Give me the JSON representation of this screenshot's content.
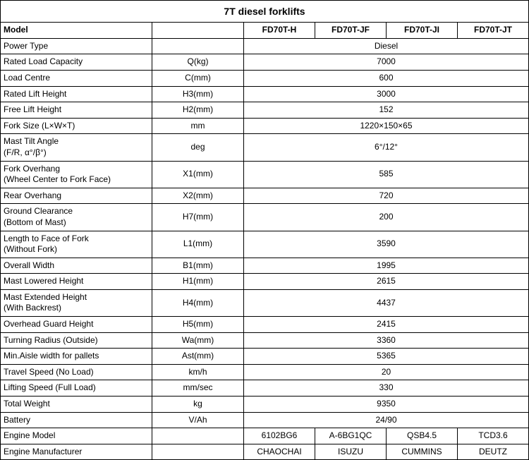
{
  "title": "7T diesel forklifts",
  "header": {
    "model_label": "Model",
    "models": [
      "FD70T-H",
      "FD70T-JF",
      "FD70T-JI",
      "FD70T-JT"
    ]
  },
  "rows_merged": [
    {
      "label": "Power Type",
      "unit": "",
      "value": "Diesel"
    },
    {
      "label": "Rated Load Capacity",
      "unit": "Q(kg)",
      "value": "7000"
    },
    {
      "label": "Load Centre",
      "unit": "C(mm)",
      "value": "600"
    },
    {
      "label": "Rated Lift Height",
      "unit": "H3(mm)",
      "value": "3000"
    },
    {
      "label": "Free Lift Height",
      "unit": "H2(mm)",
      "value": "152"
    },
    {
      "label": "Fork Size (L×W×T)",
      "unit": "mm",
      "value": "1220×150×65"
    },
    {
      "label": "Mast Tilt Angle\n (F/R, α°/β°)",
      "unit": "deg",
      "value": "6°/12°"
    },
    {
      "label": "Fork Overhang\n(Wheel Center to Fork Face)",
      "unit": "X1(mm)",
      "value": "585"
    },
    {
      "label": "Rear Overhang",
      "unit": "X2(mm)",
      "value": "720"
    },
    {
      "label": "Ground Clearance\n(Bottom of Mast)",
      "unit": "H7(mm)",
      "value": "200"
    },
    {
      "label": "Length to Face of Fork\n (Without Fork)",
      "unit": "L1(mm)",
      "value": "3590"
    },
    {
      "label": "Overall Width",
      "unit": "B1(mm)",
      "value": "1995"
    },
    {
      "label": "Mast Lowered Height",
      "unit": "H1(mm)",
      "value": "2615"
    },
    {
      "label": "Mast Extended Height\n(With Backrest)",
      "unit": "H4(mm)",
      "value": "4437"
    },
    {
      "label": "Overhead Guard Height",
      "unit": "H5(mm)",
      "value": "2415"
    },
    {
      "label": "Turning Radius (Outside)",
      "unit": "Wa(mm)",
      "value": "3360"
    },
    {
      "label": "Min.Aisle width for pallets",
      "unit": "Ast(mm)",
      "value": "5365"
    },
    {
      "label": "Travel Speed (No Load)",
      "unit": "km/h",
      "value": "20"
    },
    {
      "label": "Lifting Speed (Full Load)",
      "unit": "mm/sec",
      "value": "330"
    },
    {
      "label": "Total Weight",
      "unit": "kg",
      "value": "9350"
    },
    {
      "label": "Battery",
      "unit": "V/Ah",
      "value": "24/90"
    }
  ],
  "engine_model": {
    "label": "Engine Model",
    "unit": "",
    "values": [
      "6102BG6",
      "A-6BG1QC",
      "QSB4.5",
      "TCD3.6"
    ]
  },
  "engine_mfr": {
    "label": "Engine Manufacturer",
    "unit": "",
    "values": [
      "CHAOCHAI",
      "ISUZU",
      "CUMMINS",
      "DEUTZ"
    ]
  }
}
